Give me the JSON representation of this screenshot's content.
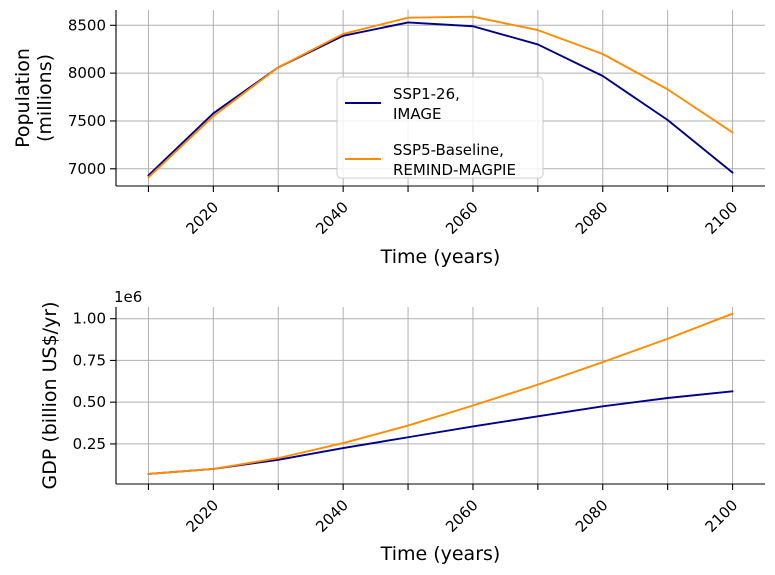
{
  "chart_data": [
    {
      "type": "line",
      "title": "",
      "xlabel": "Time (years)",
      "ylabel": "Population\n(millions)",
      "xlim": [
        2005,
        2105
      ],
      "ylim": [
        6820,
        8660
      ],
      "x_ticks": [
        2020,
        2040,
        2060,
        2080,
        2100
      ],
      "y_ticks": [
        7000,
        7500,
        8000,
        8500
      ],
      "y_offset_label": "",
      "grid": true,
      "legend": "center",
      "series": [
        {
          "name": "SSP1-26,\nIMAGE",
          "color": "#00008b",
          "x": [
            2010,
            2020,
            2030,
            2040,
            2050,
            2060,
            2070,
            2080,
            2090,
            2100
          ],
          "y": [
            6930,
            7580,
            8060,
            8390,
            8530,
            8490,
            8300,
            7970,
            7510,
            6960
          ]
        },
        {
          "name": "SSP5-Baseline,\nREMIND-MAGPIE",
          "color": "#ff8c00",
          "x": [
            2010,
            2020,
            2030,
            2040,
            2050,
            2060,
            2070,
            2080,
            2090,
            2100
          ],
          "y": [
            6910,
            7550,
            8060,
            8410,
            8580,
            8590,
            8450,
            8200,
            7830,
            7380
          ]
        }
      ]
    },
    {
      "type": "line",
      "title": "",
      "xlabel": "Time (years)",
      "ylabel": "GDP (billion US$/yr)",
      "xlim": [
        2005,
        2105
      ],
      "ylim": [
        0.01,
        1.07
      ],
      "x_ticks": [
        2020,
        2040,
        2060,
        2080,
        2100
      ],
      "y_ticks": [
        0.25,
        0.5,
        0.75,
        1.0
      ],
      "y_tick_labels": [
        "0.25",
        "0.50",
        "0.75",
        "1.00"
      ],
      "y_offset_label": "1e6",
      "grid": true,
      "legend": "",
      "series": [
        {
          "name": "",
          "color": "#00008b",
          "x": [
            2010,
            2020,
            2030,
            2040,
            2050,
            2060,
            2070,
            2080,
            2090,
            2100
          ],
          "y": [
            0.07,
            0.1,
            0.155,
            0.225,
            0.29,
            0.355,
            0.415,
            0.475,
            0.525,
            0.565
          ]
        },
        {
          "name": "",
          "color": "#ff8c00",
          "x": [
            2010,
            2020,
            2030,
            2040,
            2050,
            2060,
            2070,
            2080,
            2090,
            2100
          ],
          "y": [
            0.07,
            0.1,
            0.165,
            0.255,
            0.36,
            0.48,
            0.605,
            0.74,
            0.88,
            1.03
          ]
        }
      ]
    }
  ]
}
